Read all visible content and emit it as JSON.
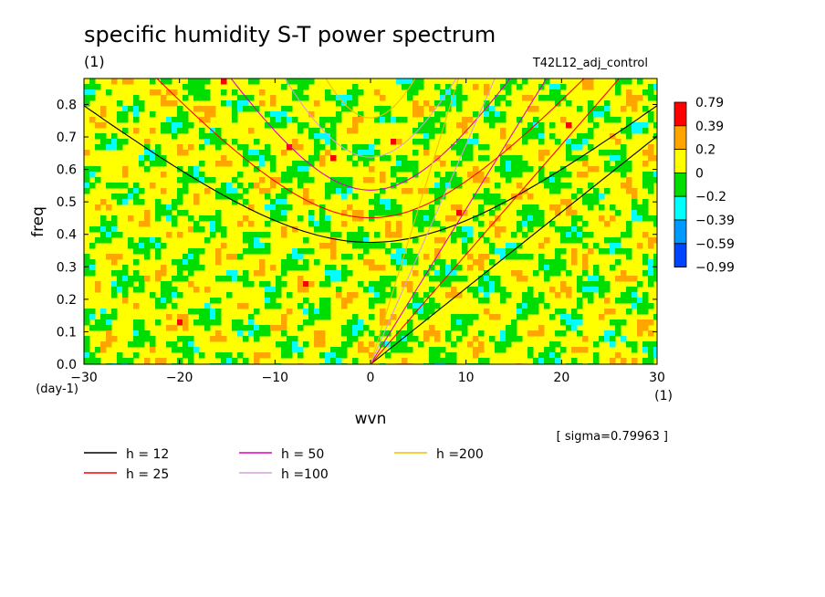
{
  "title": "specific humidity S-T power spectrum",
  "units_label": "(1)",
  "case_label": "T42L12_adj_control",
  "sigma_note": "[ sigma=0.79963 ]",
  "chart_data": {
    "type": "heatmap",
    "title": "specific humidity S-T power spectrum",
    "xlabel": "wvn",
    "ylabel": "freq",
    "x_unit": "(1)",
    "y_unit": "(day-1)",
    "xlim": [
      -30,
      30
    ],
    "ylim": [
      0,
      0.88
    ],
    "x_ticks": [
      -30,
      -20,
      -10,
      0,
      10,
      20,
      30
    ],
    "y_ticks": [
      0.0,
      0.1,
      0.2,
      0.3,
      0.4,
      0.5,
      0.6,
      0.7,
      0.8
    ],
    "x_tick_labels": [
      "-30",
      "-20",
      "-10",
      "0",
      "10",
      "20",
      "30"
    ],
    "y_tick_labels": [
      "0.0",
      "0.1",
      "0.2",
      "0.3",
      "0.4",
      "0.5",
      "0.6",
      "0.7",
      "0.8"
    ],
    "colorbar": {
      "labels": [
        "0.79",
        "0.39",
        "0.2",
        "0",
        "-0.2",
        "-0.39",
        "-0.59",
        "-0.99"
      ],
      "colors": [
        "#ff0000",
        "#ffa500",
        "#ffff00",
        "#00dd00",
        "#00ffff",
        "#0099ff",
        "#0044ff"
      ],
      "levels": [
        0.79,
        0.39,
        0.2,
        0,
        -0.2,
        -0.39,
        -0.59,
        -0.99
      ]
    },
    "field_description": "noisy standardized anomaly field, mostly between -0.2 and 0.2",
    "dispersion_curves": [
      {
        "name": "h = 12",
        "color": "#000000",
        "equivalent_depth": 12
      },
      {
        "name": "h = 25",
        "color": "#ff0000",
        "equivalent_depth": 25
      },
      {
        "name": "h = 50",
        "color": "#e000c0",
        "equivalent_depth": 50
      },
      {
        "name": "h =100",
        "color": "#d8a0d8",
        "equivalent_depth": 100
      },
      {
        "name": "h =200",
        "color": "#f0c000",
        "equivalent_depth": 200
      }
    ],
    "legend_position": "bottom"
  }
}
